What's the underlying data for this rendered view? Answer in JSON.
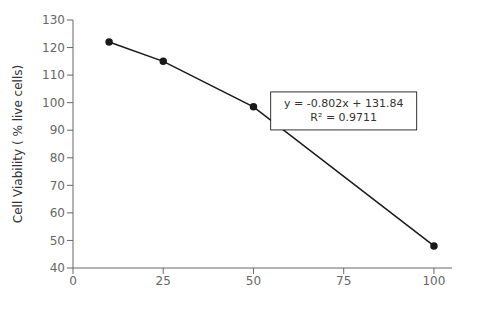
{
  "chart_data": {
    "type": "line",
    "x": [
      10,
      25,
      50,
      100
    ],
    "values": [
      122.0,
      115.0,
      98.5,
      48.0
    ],
    "color": "#1a1a1a",
    "marker": "circle",
    "xlim": [
      0,
      105
    ],
    "xticks": [
      0,
      25,
      50,
      75,
      100
    ],
    "ylim": [
      40,
      130
    ],
    "yticks": [
      40,
      50,
      60,
      70,
      80,
      90,
      100,
      110,
      120,
      130
    ],
    "ylabel": "Cell Viability ( % live cells)",
    "grid": false,
    "annotation": {
      "x": 75,
      "y": 97,
      "lines": [
        "y = -0.802x + 131.84",
        "R² = 0.9711"
      ]
    }
  }
}
